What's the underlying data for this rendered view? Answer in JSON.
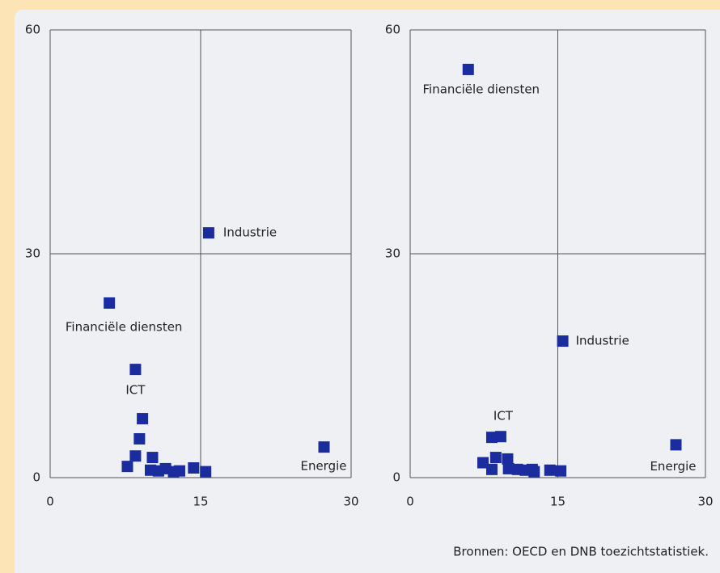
{
  "chart_data": [
    {
      "type": "scatter",
      "color": "#1b2c9e",
      "grid": true,
      "xlim": [
        0,
        30
      ],
      "ylim": [
        0,
        60
      ],
      "xticks": [
        0,
        15,
        30
      ],
      "yticks": [
        0,
        30,
        60
      ],
      "x": [
        15.8,
        5.9,
        8.5,
        27.3,
        9.2,
        8.9,
        8.5,
        7.7,
        10.2,
        10.0,
        10.8,
        11.5,
        12.3,
        12.9,
        14.3,
        15.5
      ],
      "values": [
        32.8,
        23.4,
        14.5,
        4.1,
        7.9,
        5.2,
        2.9,
        1.5,
        2.7,
        1.0,
        0.9,
        1.2,
        0.8,
        0.9,
        1.3,
        0.8
      ],
      "point_labels": [
        "Industrie",
        "Financiële diensten",
        "ICT",
        "Energie",
        null,
        null,
        null,
        null,
        null,
        null,
        null,
        null,
        null,
        null,
        null,
        null
      ]
    },
    {
      "type": "scatter",
      "color": "#1b2c9e",
      "grid": true,
      "xlim": [
        0,
        30
      ],
      "ylim": [
        0,
        60
      ],
      "xticks": [
        0,
        15,
        30
      ],
      "yticks": [
        0,
        30,
        60
      ],
      "x": [
        5.9,
        15.5,
        9.2,
        27.0,
        8.3,
        8.7,
        8.3,
        7.4,
        9.9,
        10.0,
        10.9,
        11.7,
        12.4,
        12.6,
        14.2,
        15.3
      ],
      "values": [
        54.7,
        18.3,
        5.5,
        4.4,
        5.4,
        2.7,
        1.1,
        2.0,
        2.5,
        1.2,
        1.1,
        1.0,
        1.1,
        0.8,
        1.0,
        0.9
      ],
      "point_labels": [
        "Financiële diensten",
        "Industrie",
        "ICT",
        "Energie",
        null,
        null,
        null,
        null,
        null,
        null,
        null,
        null,
        null,
        null,
        null,
        null
      ]
    }
  ],
  "source": "Bronnen: OECD en DNB toezichtstatistiek."
}
